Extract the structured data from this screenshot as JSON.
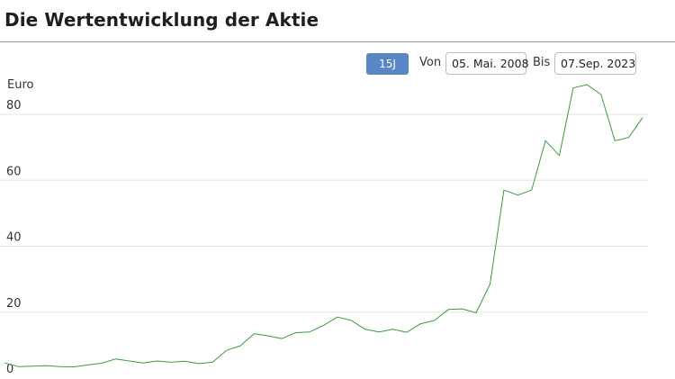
{
  "header": {
    "title": "Die Wertentwicklung der Aktie"
  },
  "controls": {
    "range_button": "15J",
    "from_label": "Von",
    "from_date": "05. Mai. 2008",
    "to_label": "Bis",
    "to_date": "07.Sep. 2023"
  },
  "colors": {
    "line": "#3e9a3e",
    "button": "#5b86c5",
    "grid": "#e3e3e3"
  },
  "chart_data": {
    "type": "line",
    "ylabel": "Euro",
    "ylim": [
      0,
      87
    ],
    "yticks": [
      0,
      20,
      40,
      60,
      80
    ],
    "grid": true,
    "x_start": "2008-05-05",
    "x_end": "2023-09-07",
    "series": [
      {
        "values": [
          4.6,
          3.5,
          3.6,
          3.8,
          3.5,
          3.4,
          4.0,
          4.5,
          5.8,
          5.2,
          4.6,
          5.2,
          4.8,
          5.1,
          4.4,
          4.8,
          8.4,
          9.8,
          13.5,
          12.8,
          12.0,
          13.8,
          14.0,
          16.0,
          18.5,
          17.5,
          14.8,
          14.0,
          14.8,
          13.9,
          16.5,
          17.5,
          20.8,
          21.0,
          19.8,
          28.5,
          57.0,
          55.5,
          57.0,
          72.0,
          67.5,
          88.0,
          89.0,
          86.0,
          72.0,
          73.0,
          79.0
        ]
      }
    ]
  }
}
